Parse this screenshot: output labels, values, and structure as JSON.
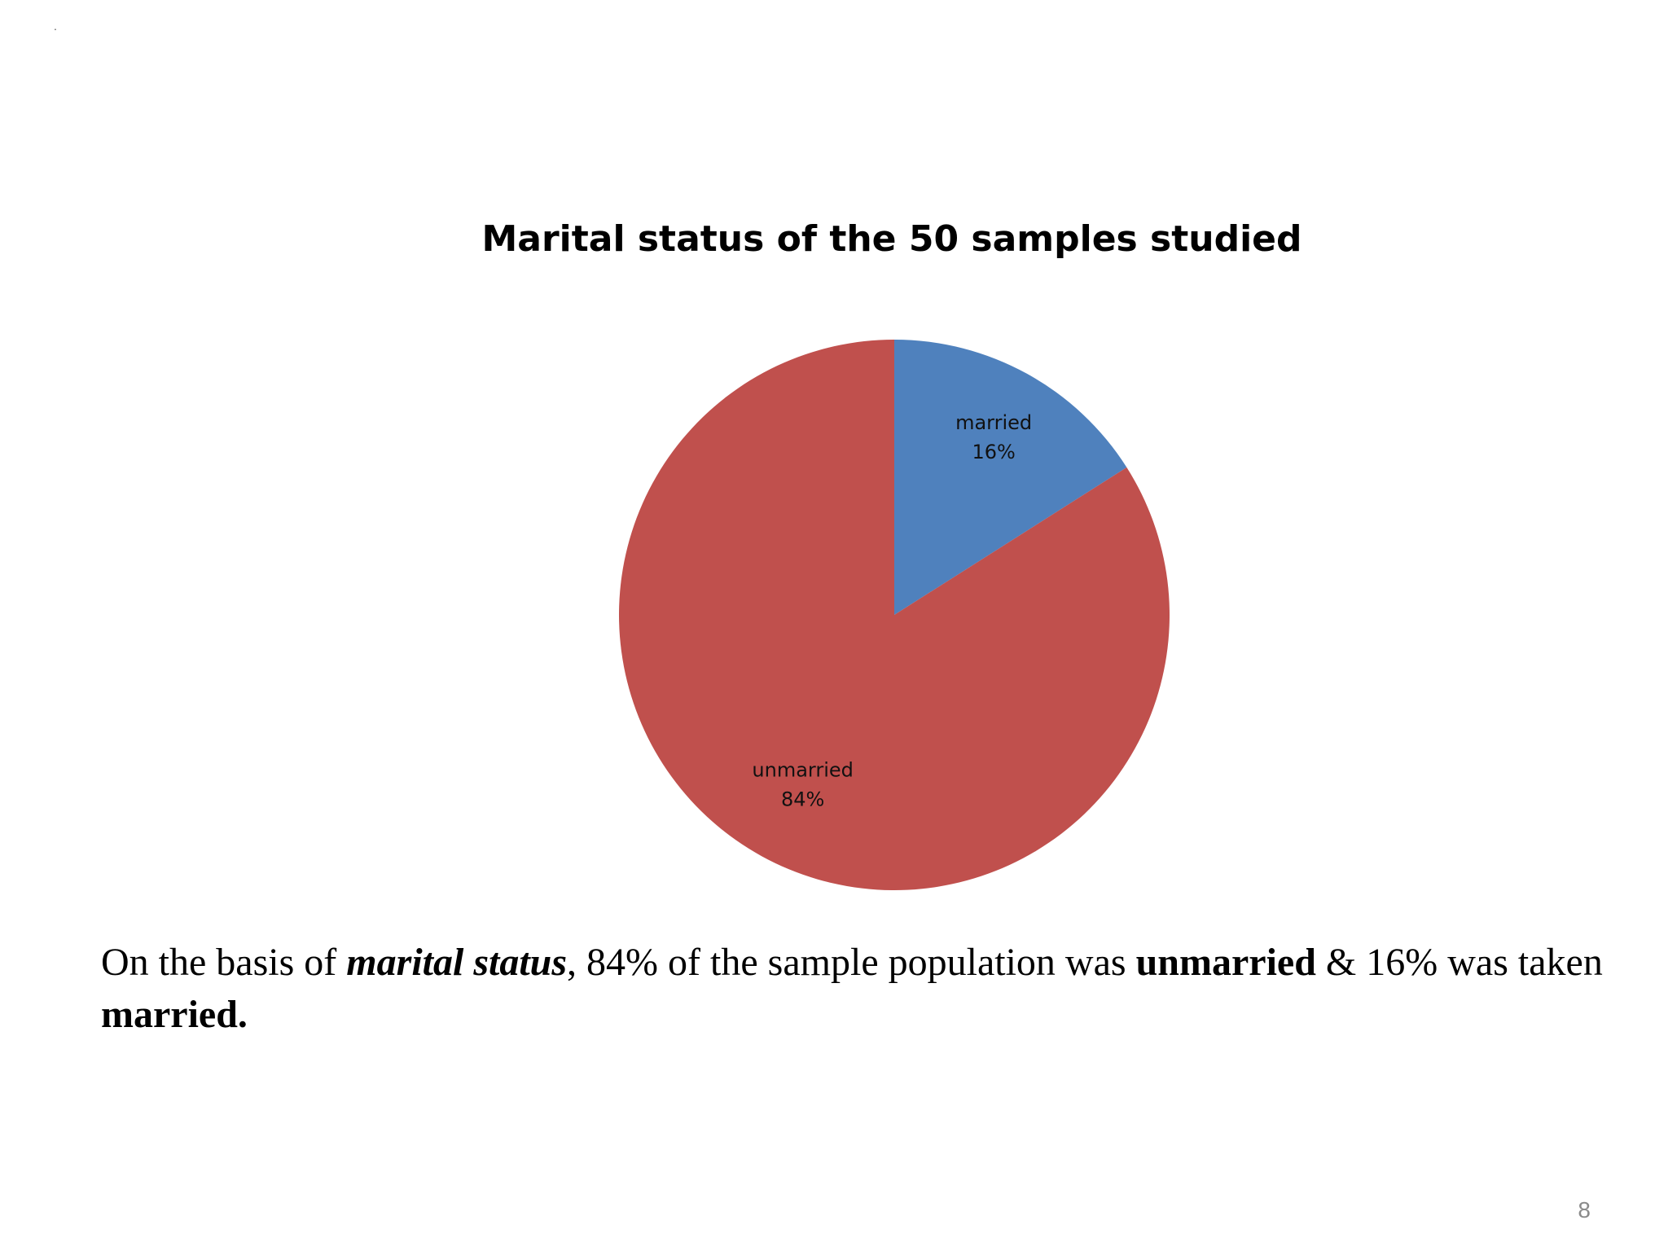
{
  "corner_mark": ".",
  "colors": {
    "married": "#4f81bd",
    "unmarried": "#c0504d"
  },
  "chart_data": {
    "type": "pie",
    "title": "Marital status of the 50 samples studied",
    "start_angle_deg": 0,
    "direction": "clockwise",
    "slices": [
      {
        "label": "married",
        "value": 16,
        "percent_label": "16%",
        "color": "#4f81bd"
      },
      {
        "label": "unmarried",
        "value": 84,
        "percent_label": "84%",
        "color": "#c0504d"
      }
    ],
    "legend": "none",
    "data_labels": "inside"
  },
  "caption": {
    "part1": "On the basis of ",
    "part2": "marital status",
    "part3": ", 84% of the sample population was ",
    "part4": "unmarried",
    "part5": " & 16% was taken ",
    "part6": "married."
  },
  "page_number": "8"
}
